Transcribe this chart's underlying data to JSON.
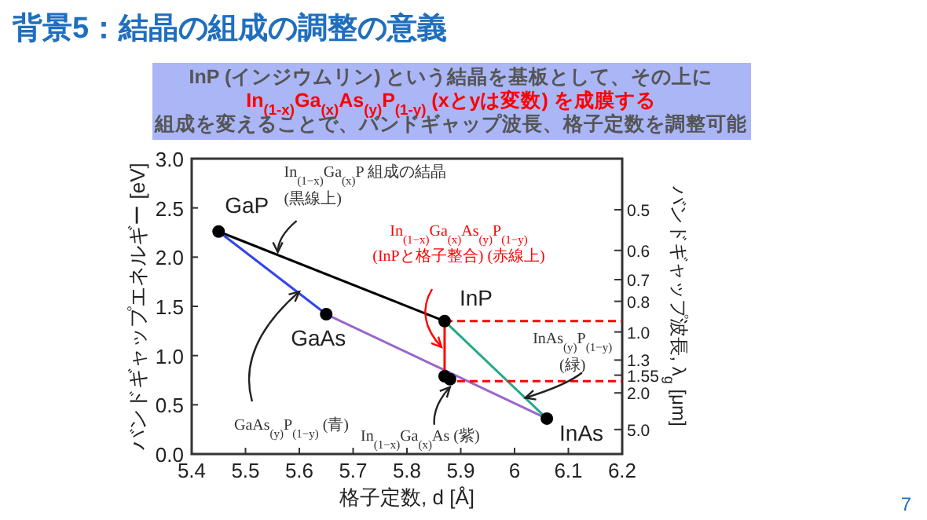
{
  "chart_data": {
    "type": "line",
    "title": "背景5：結晶の組成の調整の意義",
    "subtitle": [
      "InP (インジウムリン) という結晶を基板として、その上に",
      "In$_{(1-x)}$Ga$_{(x)}$As$_{(y)}$P$_{(1-y)}$ (xとyは変数) を成膜する",
      "組成を変えることで、バンドギャップ波長、格子定数を調整可能"
    ],
    "xlabel": "格子定数, d [Å]",
    "ylabel": "バンドギャップエネルギー [eV]",
    "y2label": "バンドギャップ波長, λ$_{g}$ [μm]",
    "xlim": [
      5.4,
      6.2
    ],
    "xticks": [
      5.4,
      5.5,
      5.6,
      5.7,
      5.8,
      5.9,
      6.0,
      6.1,
      6.2
    ],
    "ylim": [
      0,
      3
    ],
    "yticks": [
      {
        "value": 0,
        "label": "0.0"
      },
      {
        "value": 0.5,
        "label": "0.5"
      },
      {
        "value": 1,
        "label": "1.0"
      },
      {
        "value": 1.5,
        "label": "1.5"
      },
      {
        "value": 2,
        "label": "2.0"
      },
      {
        "value": 2.5,
        "label": "2.5"
      },
      {
        "value": 3,
        "label": "3.0"
      }
    ],
    "grid": false,
    "series": [
      {
        "color": "#000000",
        "x": [
          5.45,
          5.87
        ],
        "values": [
          2.26,
          1.35
        ]
      },
      {
        "color": "#3344ee",
        "x": [
          5.45,
          5.65
        ],
        "values": [
          2.26,
          1.42
        ]
      },
      {
        "color": "#9966cc",
        "x": [
          5.65,
          6.06
        ],
        "values": [
          1.42,
          0.36
        ]
      },
      {
        "color": "#22aa88",
        "x": [
          5.87,
          6.06
        ],
        "values": [
          1.35,
          0.36
        ]
      },
      {
        "color": "#ff0000",
        "x": [
          5.87,
          5.87
        ],
        "values": [
          1.35,
          0.76
        ]
      },
      {
        "color": "#ff0000",
        "line_style": "dashed",
        "x": [
          5.87,
          6.2
        ],
        "values": [
          1.35,
          1.35
        ]
      },
      {
        "color": "#ff0000",
        "line_style": "dashed",
        "x": [
          5.87,
          6.2
        ],
        "values": [
          0.74,
          0.74
        ]
      },
      {
        "type": "scatter",
        "color": "#000000",
        "marker": "circle",
        "x": [
          5.45,
          5.65,
          5.87,
          6.06,
          5.87,
          5.88
        ],
        "values": [
          2.26,
          1.42,
          1.35,
          0.36,
          0.79,
          0.76
        ]
      }
    ],
    "annotations": [
      {
        "text": "GaP",
        "x": 5.45,
        "y": 2.26
      },
      {
        "text": "GaAs",
        "x": 5.65,
        "y": 1.42
      },
      {
        "text": "InP",
        "x": 5.87,
        "y": 1.35
      },
      {
        "text": "InAs",
        "x": 6.06,
        "y": 0.36
      },
      {
        "text": "In$_{(1−x)}$Ga$_{(x)}$P 組成の結晶\n(黒線上)",
        "x": 5.56,
        "y": 2.05
      },
      "In$_{(1−x)}$Ga$_{(x)}$As$_{(y)}$P$_{(1−y)}$",
      {
        "text": "InAs$_{(y)}$P$_{(1−y)}$\n(緑)",
        "x": 6.02,
        "y": 0.57
      },
      {
        "text": "GaAs$_{(y)}$P$_{(1−y)}$ (青)",
        "x": 5.6,
        "y": 1.65
      },
      {
        "text": "In$_{(1−x)}$Ga$_{(x)}$As (紫)",
        "x": 5.88,
        "y": 0.68
      },
      "(InPと格子整合) (赤線上)",
      "0.5",
      "0.6",
      "0.7",
      "0.8",
      "1.0",
      "1.3",
      "1.55",
      "2.0",
      "5.0",
      "7"
    ]
  }
}
